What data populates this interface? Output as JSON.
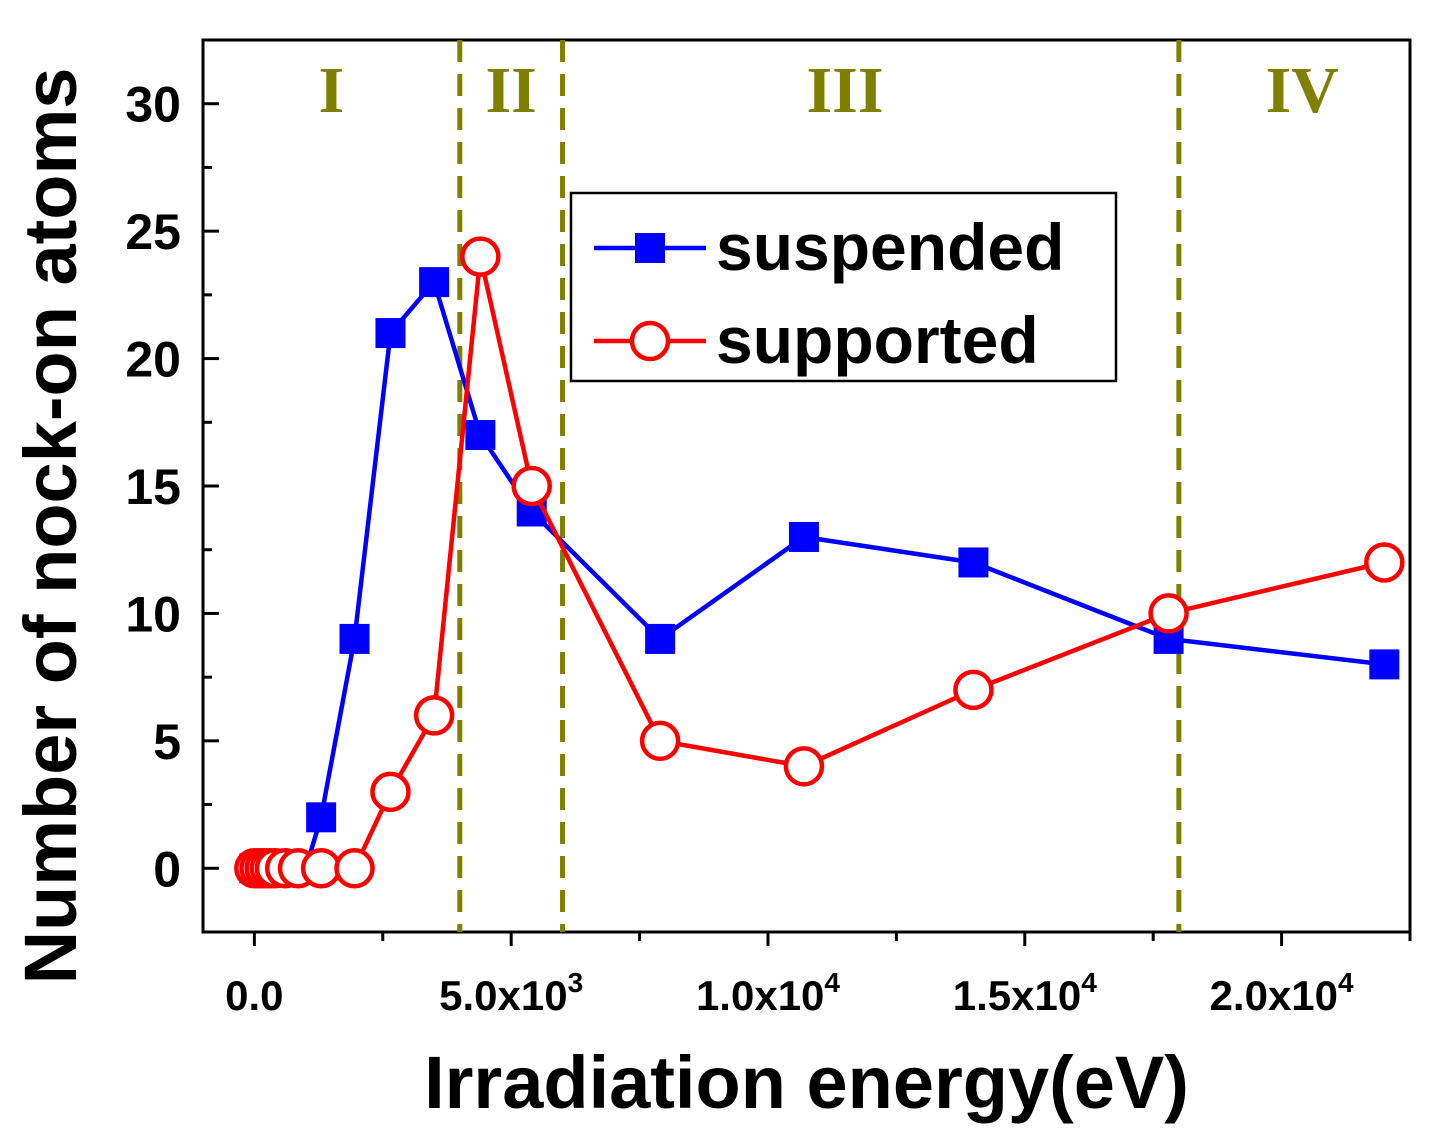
{
  "chart_data": {
    "type": "line",
    "xlabel": "Irradiation energy(eV)",
    "ylabel": "Number of nock-on atoms",
    "xlim": [
      -1000,
      22500
    ],
    "ylim": [
      -2.5,
      32.5
    ],
    "x_ticks": [
      {
        "value": 0,
        "mant": "0.0",
        "exp": ""
      },
      {
        "value": 5000,
        "mant": "5.0x10",
        "exp": "3"
      },
      {
        "value": 10000,
        "mant": "1.0x10",
        "exp": "4"
      },
      {
        "value": 15000,
        "mant": "1.5x10",
        "exp": "4"
      },
      {
        "value": 20000,
        "mant": "2.0x10",
        "exp": "4"
      }
    ],
    "x_minor_ticks": [
      2500,
      7500,
      12500,
      17500,
      22500
    ],
    "y_ticks": [
      0,
      5,
      10,
      15,
      20,
      25,
      30
    ],
    "y_tick_labels": [
      "0",
      "5",
      "10",
      "15",
      "20",
      "25",
      "30"
    ],
    "regions": [
      {
        "label": "I",
        "x": 1500
      },
      {
        "label": "II",
        "x": 5000
      },
      {
        "label": "III",
        "x": 11500
      },
      {
        "label": "IV",
        "x": 20400
      }
    ],
    "region_boundaries": [
      4000,
      6000,
      18000
    ],
    "region_color": "#808000",
    "legend_position": "top-center",
    "series": [
      {
        "name": "suspended",
        "color": "#0000ff",
        "marker": "filled-square",
        "x": [
          0,
          100,
          200,
          300,
          400,
          600,
          800,
          1000,
          1300,
          1950,
          2650,
          3500,
          4400,
          5400,
          7900,
          10700,
          14000,
          17800,
          22000
        ],
        "y": [
          0,
          0,
          0,
          0,
          0,
          0,
          0,
          0,
          2,
          9,
          21,
          23,
          17,
          14,
          9,
          13,
          12,
          9,
          8
        ]
      },
      {
        "name": "supported",
        "color": "#ff0000",
        "marker": "open-circle",
        "x": [
          0,
          100,
          200,
          300,
          400,
          600,
          850,
          1300,
          1950,
          2650,
          3500,
          4400,
          5400,
          7900,
          10700,
          14000,
          17800,
          22000
        ],
        "y": [
          0,
          0,
          0,
          0,
          0,
          0,
          0,
          0,
          0,
          3,
          6,
          24,
          15,
          5,
          4,
          7,
          10,
          12
        ]
      }
    ]
  }
}
